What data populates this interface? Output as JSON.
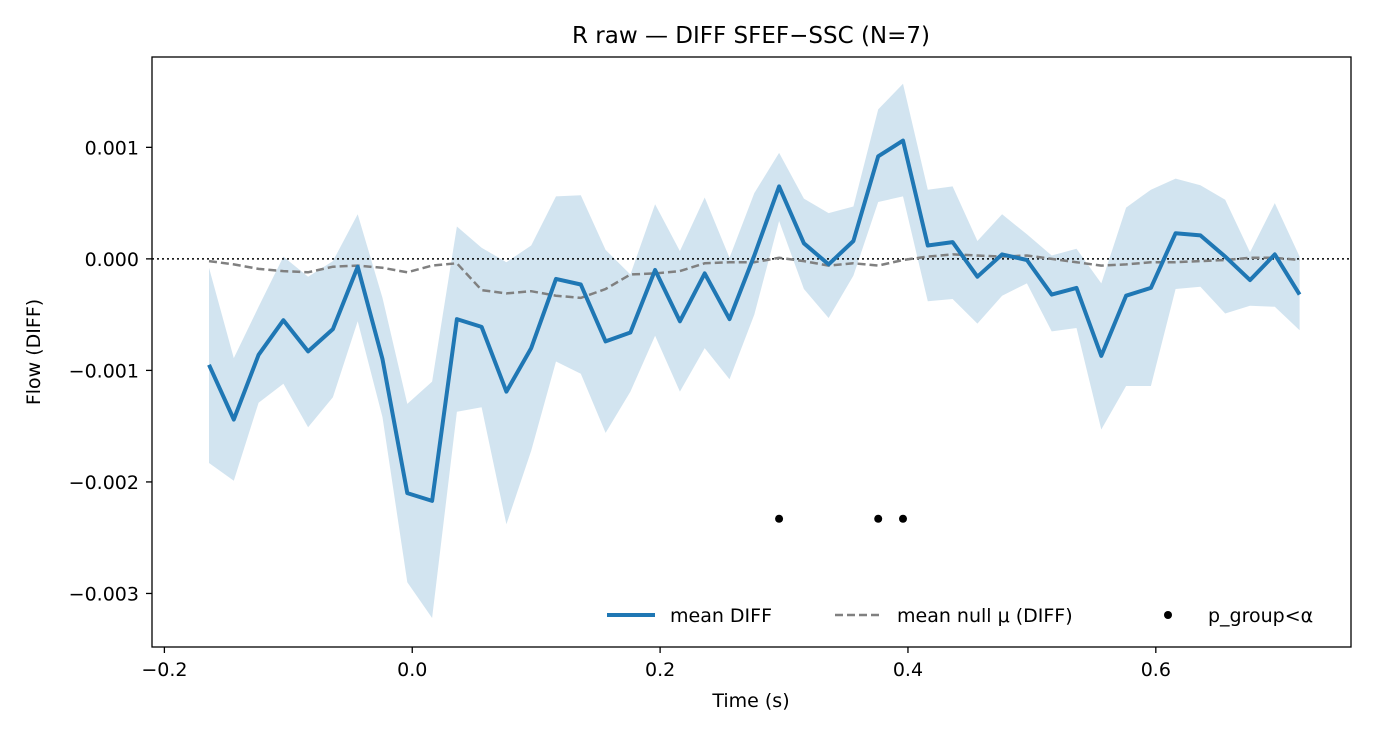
{
  "chart_data": {
    "type": "line",
    "title": "R raw — DIFF SFEF−SSC (N=7)",
    "xlabel": "Time (s)",
    "ylabel": "Flow (DIFF)",
    "xlim": [
      -0.21,
      0.7575
    ],
    "ylim": [
      -0.00348,
      0.00181
    ],
    "xticks": [
      -0.2,
      0.0,
      0.2,
      0.4,
      0.6
    ],
    "xtick_labels": [
      "−0.2",
      "0.0",
      "0.2",
      "0.4",
      "0.6"
    ],
    "yticks": [
      0.001,
      0.0,
      -0.001,
      -0.002,
      -0.003
    ],
    "ytick_labels": [
      "0.001",
      "0.000",
      "−0.001",
      "−0.002",
      "−0.003"
    ],
    "grid": false,
    "zero_line": {
      "y": 0,
      "style": "dotted"
    },
    "legend_position": "lower-right",
    "colors": {
      "mean": "#1f77b4",
      "band": "#1f77b4",
      "null": "#808080",
      "sig": "#000000",
      "zero": "#000000"
    },
    "x": [
      -0.164,
      -0.144,
      -0.124,
      -0.104,
      -0.084,
      -0.064,
      -0.044,
      -0.024,
      -0.004,
      0.016,
      0.036,
      0.056,
      0.076,
      0.096,
      0.116,
      0.136,
      0.156,
      0.176,
      0.196,
      0.216,
      0.236,
      0.256,
      0.276,
      0.296,
      0.316,
      0.336,
      0.356,
      0.376,
      0.396,
      0.416,
      0.436,
      0.456,
      0.476,
      0.496,
      0.516,
      0.536,
      0.556,
      0.576,
      0.596,
      0.616,
      0.636,
      0.656,
      0.676,
      0.696,
      0.716
    ],
    "series": [
      {
        "name": "mean DIFF",
        "values": [
          -0.00095,
          -0.00144,
          -0.00086,
          -0.00055,
          -0.00083,
          -0.00063,
          -7e-05,
          -0.0009,
          -0.0021,
          -0.00217,
          -0.00054,
          -0.00061,
          -0.00119,
          -0.0008,
          -0.00018,
          -0.00023,
          -0.00074,
          -0.00066,
          -0.0001,
          -0.00056,
          -0.00013,
          -0.00054,
          3e-05,
          0.00065,
          0.00014,
          -5e-05,
          0.00016,
          0.00092,
          0.00106,
          0.00012,
          0.00015,
          -0.00016,
          4e-05,
          -1e-05,
          -0.00032,
          -0.00026,
          -0.00087,
          -0.00033,
          -0.00026,
          0.00023,
          0.00021,
          2e-05,
          -0.00019,
          4e-05,
          -0.00032
        ],
        "lower": [
          -0.00183,
          -0.00199,
          -0.00129,
          -0.00112,
          -0.00151,
          -0.00124,
          -0.00056,
          -0.00142,
          -0.0029,
          -0.00322,
          -0.00137,
          -0.00133,
          -0.00238,
          -0.00172,
          -0.00092,
          -0.00103,
          -0.00156,
          -0.00119,
          -0.00069,
          -0.00119,
          -0.0008,
          -0.00108,
          -0.0005,
          0.00034,
          -0.00027,
          -0.00053,
          -0.00015,
          0.00051,
          0.00056,
          -0.00038,
          -0.00036,
          -0.00058,
          -0.00033,
          -0.00022,
          -0.00065,
          -0.00062,
          -0.00153,
          -0.00114,
          -0.00114,
          -0.00027,
          -0.00025,
          -0.00049,
          -0.00042,
          -0.00043,
          -0.00064
        ],
        "upper": [
          -8e-05,
          -0.00089,
          -0.00043,
          2e-05,
          -0.00016,
          -2e-05,
          0.0004,
          -0.00035,
          -0.0013,
          -0.0011,
          0.00029,
          0.0001,
          -3e-05,
          0.00012,
          0.00056,
          0.00057,
          8e-05,
          -0.00014,
          0.00049,
          7e-05,
          0.00055,
          1e-05,
          0.00059,
          0.00095,
          0.00054,
          0.00041,
          0.00047,
          0.00134,
          0.00157,
          0.00062,
          0.00065,
          0.00016,
          0.0004,
          0.00022,
          3e-05,
          9e-05,
          -0.00022,
          0.00046,
          0.00062,
          0.00072,
          0.00066,
          0.00053,
          6e-05,
          0.0005,
          2e-05
        ]
      },
      {
        "name": "mean null μ (DIFF)",
        "values": [
          -2e-05,
          -5e-05,
          -9e-05,
          -0.00011,
          -0.00012,
          -7e-05,
          -6e-05,
          -8e-05,
          -0.00012,
          -6e-05,
          -4e-05,
          -0.00028,
          -0.00031,
          -0.00029,
          -0.00033,
          -0.00035,
          -0.00027,
          -0.00014,
          -0.00013,
          -0.00011,
          -4e-05,
          -3e-05,
          -3e-05,
          1e-05,
          -2e-05,
          -6e-05,
          -4e-05,
          -6e-05,
          -1e-05,
          2e-05,
          4e-05,
          3e-05,
          2e-05,
          3e-05,
          0.0,
          -3e-05,
          -6e-05,
          -5e-05,
          -3e-05,
          -3e-05,
          -2e-05,
          -1e-05,
          1e-05,
          1e-05,
          -1e-05
        ]
      },
      {
        "name": "p_group<α",
        "points": [
          [
            0.296,
            -0.00233
          ],
          [
            0.376,
            -0.00233
          ],
          [
            0.396,
            -0.00233
          ]
        ]
      }
    ]
  }
}
